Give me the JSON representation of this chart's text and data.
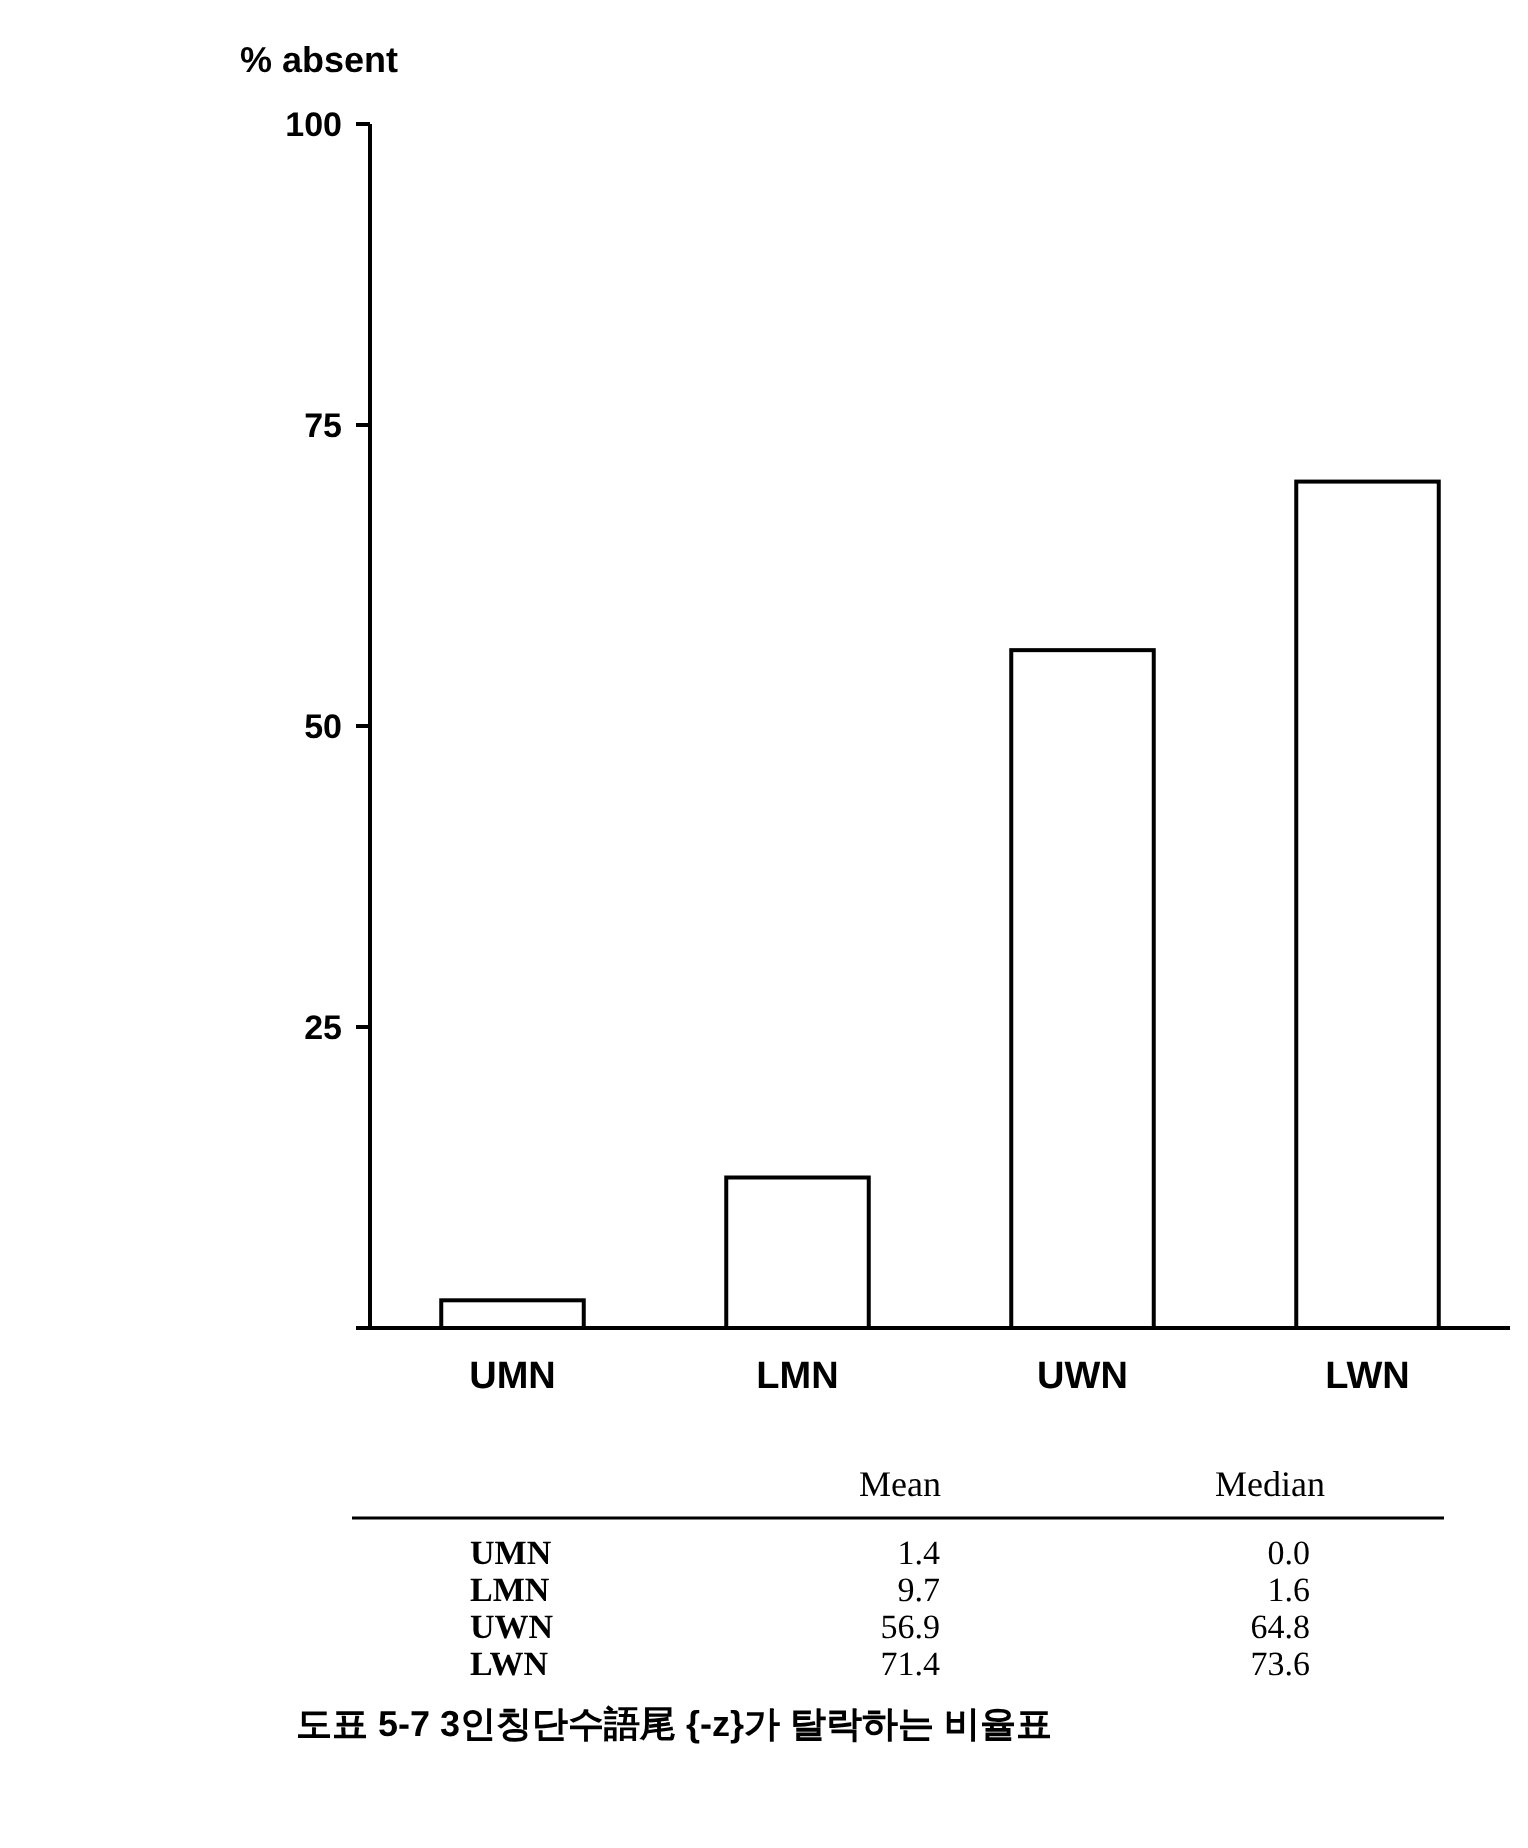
{
  "chart_data": [
    {
      "type": "bar",
      "ylabel": "% absent",
      "categories": [
        "UMN",
        "LMN",
        "UWN",
        "LWN"
      ],
      "values": [
        2.3,
        12.5,
        56.3,
        70.3
      ],
      "color": "#ffffff",
      "ylim": [
        0,
        100
      ],
      "yticks": [
        {
          "value": 0,
          "label": null
        },
        25,
        50,
        75,
        100
      ],
      "grid": false,
      "legend": false
    },
    {
      "type": "other",
      "categories": [
        "UMN",
        "LMN",
        "UWN",
        "LWN"
      ],
      "series": [
        {
          "name": "Mean",
          "values": [
            1.4,
            9.7,
            56.9,
            71.4
          ],
          "value_labels": [
            "1.4",
            "9.7",
            "56.9",
            "71.4"
          ]
        },
        {
          "name": "Median",
          "values": [
            0.0,
            1.6,
            64.8,
            73.6
          ],
          "value_labels": [
            "0.0",
            "1.6",
            "64.8",
            "73.6"
          ]
        }
      ],
      "annotations": [
        "도표 5-7 3인칭단수語尾 {-z}가 탈락하는 비율표"
      ]
    }
  ]
}
